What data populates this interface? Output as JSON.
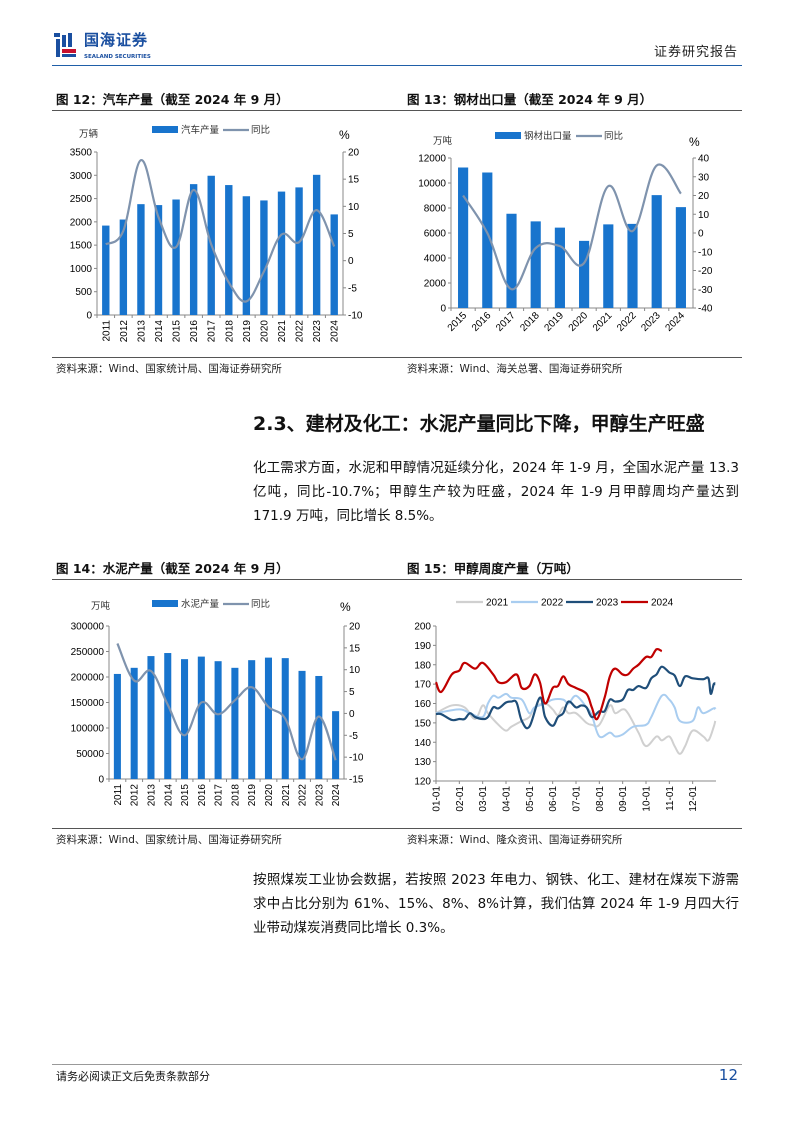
{
  "header": {
    "brand_cn": "国海证券",
    "brand_en": "SEALAND SECURITIES",
    "report_type": "证券研究报告"
  },
  "colors": {
    "bar": "#1874cd",
    "yoy_line": "#7f93ad",
    "accent": "#1a4fa0",
    "y2021": "#d0d0d0",
    "y2022": "#a9cdf0",
    "y2023": "#1f4e79",
    "y2024": "#c00000"
  },
  "fig12": {
    "title": "图 12：汽车产量（截至 2024 年 9 月）",
    "source": "资料来源：Wind、国家统计局、国海证券研究所"
  },
  "fig13": {
    "title": "图 13：钢材出口量（截至 2024 年 9 月）",
    "source": "资料来源：Wind、海关总署、国海证券研究所"
  },
  "fig14": {
    "title": "图 14：水泥产量（截至 2024 年 9 月）",
    "source": "资料来源：Wind、国家统计局、国海证券研究所"
  },
  "fig15": {
    "title": "图 15：甲醇周度产量（万吨）",
    "source": "资料来源：Wind、隆众资讯、国海证券研究所"
  },
  "section": {
    "heading": "2.3、建材及化工：水泥产量同比下降，甲醇生产旺盛"
  },
  "paragraphs": [
    "化工需求方面，水泥和甲醇情况延续分化，2024 年 1-9 月，全国水泥产量 13.3 亿吨，同比-10.7%；甲醇生产较为旺盛，2024 年 1-9 月甲醇周均产量达到 171.9 万吨，同比增长 8.5%。",
    "按照煤炭工业协会数据，若按照 2023 年电力、钢铁、化工、建材在煤炭下游需求中占比分别为 61%、15%、8%、8%计算，我们估算 2024 年 1-9 月四大行业带动煤炭消费同比增长 0.3%。"
  ],
  "footer": {
    "disclaimer": "请务必阅读正文后免责条款部分",
    "page": "12"
  },
  "chart_data": [
    {
      "id": "fig12",
      "type": "bar+line",
      "left_unit": "万辆",
      "right_unit": "%",
      "legend": [
        "汽车产量",
        "同比"
      ],
      "legend_placement": "top",
      "categories": [
        "2011",
        "2012",
        "2013",
        "2014",
        "2015",
        "2016",
        "2017",
        "2018",
        "2019",
        "2020",
        "2021",
        "2022",
        "2023",
        "2024"
      ],
      "series": [
        {
          "name": "汽车产量",
          "axis": "left",
          "values": [
            1920,
            2050,
            2380,
            2360,
            2480,
            2810,
            2990,
            2790,
            2550,
            2460,
            2650,
            2740,
            3010,
            2160
          ]
        },
        {
          "name": "同比",
          "axis": "right",
          "values": [
            3,
            5.5,
            18.5,
            8,
            2.5,
            13,
            3,
            -4,
            -7.5,
            -2,
            4.8,
            3.4,
            9.3,
            2.6
          ]
        }
      ],
      "ylim": [
        0,
        3500
      ],
      "ystep": 500,
      "y2lim": [
        -10,
        20
      ],
      "y2step": 5,
      "xlabel_rotate": 90
    },
    {
      "id": "fig13",
      "type": "bar+line",
      "left_unit": "万吨",
      "right_unit": "%",
      "legend": [
        "钢材出口量",
        "同比"
      ],
      "legend_placement": "top",
      "categories": [
        "2015",
        "2016",
        "2017",
        "2018",
        "2019",
        "2020",
        "2021",
        "2022",
        "2023",
        "2024"
      ],
      "series": [
        {
          "name": "钢材出口量",
          "axis": "left",
          "values": [
            11240,
            10840,
            7540,
            6930,
            6430,
            5370,
            6690,
            6730,
            9030,
            8070
          ]
        },
        {
          "name": "同比",
          "axis": "right",
          "values": [
            20,
            0,
            -30,
            -8,
            -7,
            -16,
            25,
            1,
            36,
            21
          ]
        }
      ],
      "ylim": [
        0,
        12000
      ],
      "ystep": 2000,
      "y2lim": [
        -40,
        40
      ],
      "y2step": 10,
      "xlabel_rotate": 45
    },
    {
      "id": "fig14",
      "type": "bar+line",
      "left_unit": "万吨",
      "right_unit": "%",
      "legend": [
        "水泥产量",
        "同比"
      ],
      "legend_placement": "top",
      "categories": [
        "2011",
        "2012",
        "2013",
        "2014",
        "2015",
        "2016",
        "2017",
        "2018",
        "2019",
        "2020",
        "2021",
        "2022",
        "2023",
        "2024"
      ],
      "series": [
        {
          "name": "水泥产量",
          "axis": "left",
          "values": [
            206000,
            218000,
            241000,
            247000,
            235000,
            240000,
            231000,
            218000,
            233000,
            238000,
            237000,
            212000,
            202000,
            133000
          ]
        },
        {
          "name": "同比",
          "axis": "right",
          "values": [
            16,
            7.5,
            9.7,
            2,
            -5,
            2.5,
            -0.2,
            3,
            6,
            1.5,
            -1.2,
            -10.5,
            -0.7,
            -10.7
          ]
        }
      ],
      "ylim": [
        0,
        300000
      ],
      "ystep": 50000,
      "y2lim": [
        -15,
        20
      ],
      "y2step": 5,
      "xlabel_rotate": 90
    },
    {
      "id": "fig15",
      "type": "line",
      "legend_placement": "top",
      "ylim": [
        120,
        200
      ],
      "ystep": 10,
      "x_ticks": [
        "01-01",
        "02-01",
        "03-01",
        "04-01",
        "05-01",
        "06-01",
        "07-01",
        "08-01",
        "09-01",
        "10-01",
        "11-01",
        "12-01"
      ],
      "series": [
        {
          "name": "2021",
          "points": [
            [
              "01-01",
              155
            ],
            [
              "01-22",
              159
            ],
            [
              "02-08",
              158
            ],
            [
              "02-22",
              152
            ],
            [
              "03-01",
              159
            ],
            [
              "03-08",
              155
            ],
            [
              "03-22",
              149
            ],
            [
              "04-01",
              146
            ],
            [
              "04-08",
              148
            ],
            [
              "04-22",
              151
            ],
            [
              "05-01",
              153
            ],
            [
              "05-08",
              158
            ],
            [
              "05-22",
              160
            ],
            [
              "06-01",
              157
            ],
            [
              "06-08",
              154
            ],
            [
              "06-15",
              158
            ],
            [
              "06-22",
              155
            ],
            [
              "07-01",
              155
            ],
            [
              "07-15",
              150
            ],
            [
              "07-22",
              149
            ],
            [
              "08-01",
              149
            ],
            [
              "08-15",
              159
            ],
            [
              "08-22",
              155
            ],
            [
              "09-01",
              157
            ],
            [
              "09-08",
              155
            ],
            [
              "09-22",
              145
            ],
            [
              "10-01",
              138
            ],
            [
              "10-15",
              143
            ],
            [
              "10-22",
              141
            ],
            [
              "11-01",
              143
            ],
            [
              "11-08",
              138
            ],
            [
              "11-15",
              134
            ],
            [
              "11-22",
              138
            ],
            [
              "12-01",
              146
            ],
            [
              "12-15",
              143
            ],
            [
              "12-22",
              141
            ],
            [
              "12-29",
              148
            ],
            [
              "12-31",
              151
            ]
          ]
        },
        {
          "name": "2022",
          "points": [
            [
              "01-01",
              155
            ],
            [
              "02-01",
              157
            ],
            [
              "02-15",
              155
            ],
            [
              "03-01",
              153
            ],
            [
              "03-08",
              160
            ],
            [
              "03-15",
              164
            ],
            [
              "03-22",
              163
            ],
            [
              "04-01",
              165
            ],
            [
              "04-08",
              163
            ],
            [
              "04-22",
              162
            ],
            [
              "05-01",
              155
            ],
            [
              "05-08",
              158
            ],
            [
              "05-22",
              160
            ],
            [
              "06-01",
              162
            ],
            [
              "06-15",
              162
            ],
            [
              "06-22",
              160
            ],
            [
              "07-01",
              164
            ],
            [
              "07-15",
              158
            ],
            [
              "07-22",
              154
            ],
            [
              "08-01",
              143
            ],
            [
              "08-15",
              145
            ],
            [
              "08-22",
              143
            ],
            [
              "09-01",
              144
            ],
            [
              "09-15",
              148
            ],
            [
              "10-01",
              149
            ],
            [
              "10-08",
              153
            ],
            [
              "10-22",
              164
            ],
            [
              "11-01",
              162
            ],
            [
              "11-08",
              158
            ],
            [
              "11-15",
              151
            ],
            [
              "12-01",
              151
            ],
            [
              "12-08",
              158
            ],
            [
              "12-15",
              155
            ],
            [
              "12-29",
              157.5
            ],
            [
              "12-31",
              157
            ]
          ]
        },
        {
          "name": "2023",
          "points": [
            [
              "01-01",
              154.5
            ],
            [
              "01-08",
              154.5
            ],
            [
              "01-22",
              151.5
            ],
            [
              "02-01",
              152
            ],
            [
              "02-08",
              152
            ],
            [
              "02-15",
              155
            ],
            [
              "02-22",
              153
            ],
            [
              "03-01",
              152
            ],
            [
              "03-08",
              153
            ],
            [
              "03-15",
              158
            ],
            [
              "03-22",
              157.5
            ],
            [
              "04-01",
              160.5
            ],
            [
              "04-08",
              161
            ],
            [
              "04-15",
              160.5
            ],
            [
              "04-22",
              151
            ],
            [
              "05-01",
              148
            ],
            [
              "05-15",
              163
            ],
            [
              "05-22",
              153
            ],
            [
              "06-01",
              148.5
            ],
            [
              "06-08",
              153
            ],
            [
              "06-15",
              155
            ],
            [
              "06-22",
              161
            ],
            [
              "07-01",
              158
            ],
            [
              "07-08",
              159
            ],
            [
              "07-15",
              158
            ],
            [
              "07-22",
              153
            ],
            [
              "08-01",
              156
            ],
            [
              "08-08",
              156
            ],
            [
              "08-15",
              162
            ],
            [
              "08-22",
              161
            ],
            [
              "09-01",
              162
            ],
            [
              "09-08",
              167
            ],
            [
              "09-15",
              167
            ],
            [
              "09-22",
              169
            ],
            [
              "10-01",
              168
            ],
            [
              "10-08",
              173
            ],
            [
              "10-15",
              175
            ],
            [
              "10-22",
              179
            ],
            [
              "11-01",
              176
            ],
            [
              "11-08",
              174.5
            ],
            [
              "11-15",
              169
            ],
            [
              "11-22",
              174
            ],
            [
              "12-01",
              173
            ],
            [
              "12-15",
              172.5
            ],
            [
              "12-22",
              173
            ],
            [
              "12-25",
              165
            ],
            [
              "12-29",
              170
            ],
            [
              "12-31",
              170
            ]
          ]
        },
        {
          "name": "2024",
          "points": [
            [
              "01-01",
              171
            ],
            [
              "01-08",
              166
            ],
            [
              "01-22",
              175
            ],
            [
              "02-01",
              177
            ],
            [
              "02-08",
              181
            ],
            [
              "02-22",
              178
            ],
            [
              "03-01",
              181
            ],
            [
              "03-15",
              175
            ],
            [
              "03-22",
              171
            ],
            [
              "04-01",
              171
            ],
            [
              "04-15",
              175
            ],
            [
              "04-22",
              168
            ],
            [
              "05-01",
              169
            ],
            [
              "05-08",
              175
            ],
            [
              "05-15",
              171
            ],
            [
              "05-22",
              160
            ],
            [
              "06-01",
              168
            ],
            [
              "06-08",
              169
            ],
            [
              "06-15",
              174
            ],
            [
              "06-22",
              170
            ],
            [
              "07-01",
              168
            ],
            [
              "07-15",
              165
            ],
            [
              "07-22",
              158
            ],
            [
              "07-29",
              152
            ],
            [
              "08-08",
              163
            ],
            [
              "08-15",
              174
            ],
            [
              "08-22",
              178
            ],
            [
              "09-01",
              175
            ],
            [
              "09-08",
              175
            ],
            [
              "09-15",
              178
            ],
            [
              "09-22",
              180
            ],
            [
              "10-01",
              184
            ],
            [
              "10-08",
              184
            ],
            [
              "10-15",
              188
            ],
            [
              "10-22",
              187
            ]
          ]
        }
      ]
    }
  ]
}
